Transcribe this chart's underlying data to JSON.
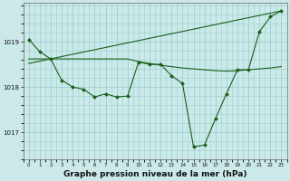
{
  "background_color": "#cbe9e9",
  "grid_color": "#9dcfcf",
  "line_color": "#1a5e1a",
  "marker_color": "#1a5e1a",
  "xlabel": "Graphe pression niveau de la mer (hPa)",
  "xlabel_fontsize": 6.5,
  "ylabel_ticks": [
    1017,
    1018,
    1019
  ],
  "xlim": [
    -0.5,
    23.5
  ],
  "ylim": [
    1016.4,
    1019.85
  ],
  "series1_x": [
    0,
    1,
    2,
    3,
    4,
    5,
    6,
    7,
    8,
    9,
    10,
    11,
    12,
    13,
    14,
    15,
    16,
    17,
    18,
    19,
    20,
    21,
    22,
    23
  ],
  "series1_y": [
    1019.05,
    1018.78,
    1018.62,
    1018.15,
    1018.0,
    1017.95,
    1017.78,
    1017.85,
    1017.78,
    1017.8,
    1018.55,
    1018.5,
    1018.5,
    1018.25,
    1018.08,
    1016.68,
    1016.72,
    1017.3,
    1017.85,
    1018.38,
    1018.38,
    1019.22,
    1019.55,
    1019.68
  ],
  "series2_x": [
    0,
    1,
    2,
    3,
    4,
    5,
    6,
    7,
    8,
    9,
    10,
    11,
    12,
    13,
    14,
    15,
    16,
    17,
    18,
    19,
    20,
    21,
    22,
    23
  ],
  "series2_y": [
    1018.62,
    1018.62,
    1018.62,
    1018.62,
    1018.62,
    1018.62,
    1018.62,
    1018.62,
    1018.62,
    1018.62,
    1018.56,
    1018.52,
    1018.48,
    1018.45,
    1018.42,
    1018.4,
    1018.38,
    1018.36,
    1018.35,
    1018.36,
    1018.38,
    1018.4,
    1018.42,
    1018.45
  ],
  "series3_x": [
    0,
    23
  ],
  "series3_y": [
    1018.52,
    1019.68
  ]
}
